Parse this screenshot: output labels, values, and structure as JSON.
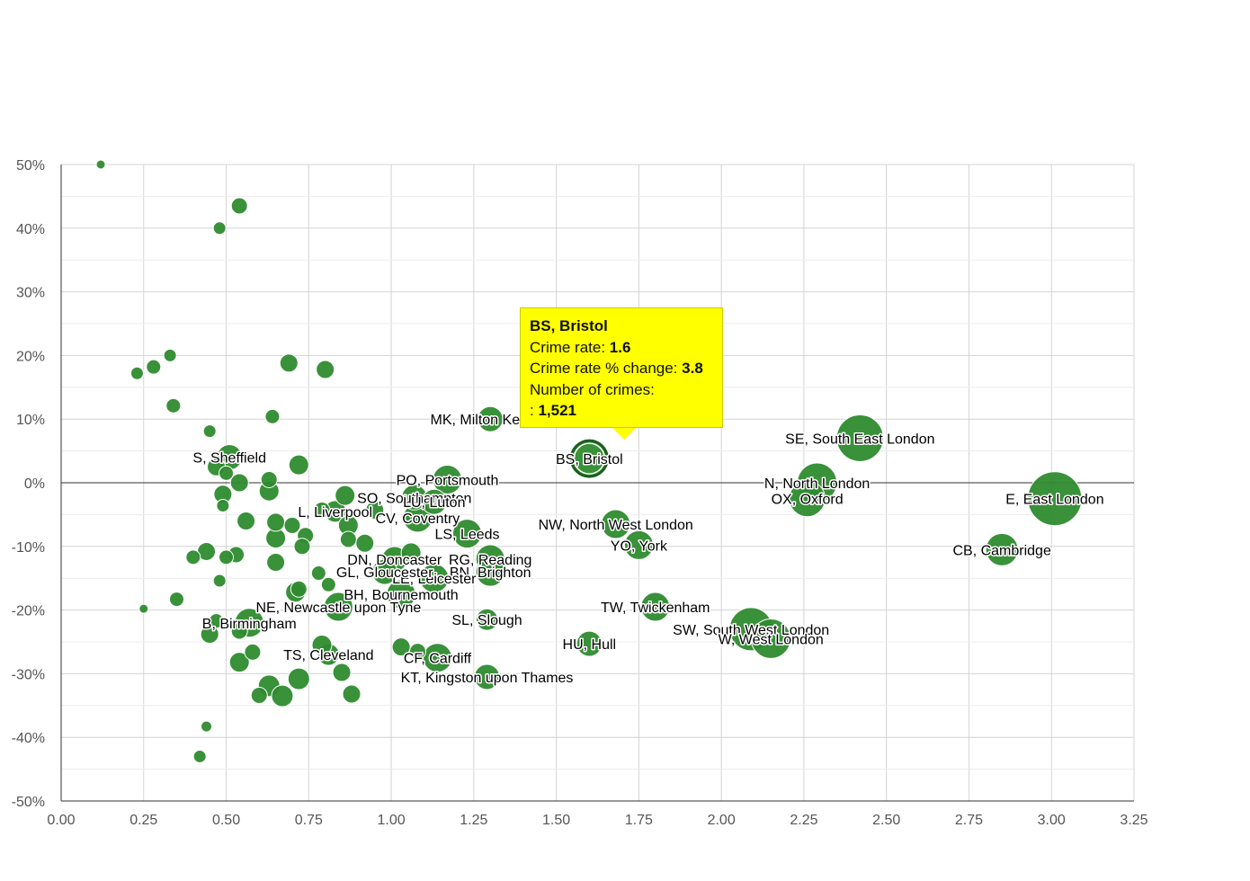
{
  "chart_data": {
    "type": "scatter",
    "title": "",
    "xlabel": "",
    "ylabel": "",
    "xlim": [
      0,
      3.25
    ],
    "ylim": [
      -50,
      50
    ],
    "x_ticks": [
      "0.00",
      "0.25",
      "0.50",
      "0.75",
      "1.00",
      "1.25",
      "1.50",
      "1.75",
      "2.00",
      "2.25",
      "2.50",
      "2.75",
      "3.00",
      "3.25"
    ],
    "y_ticks": [
      "50%",
      "40%",
      "30%",
      "20%",
      "10%",
      "0%",
      "-10%",
      "-20%",
      "-30%",
      "-40%",
      "-50%"
    ],
    "grid": true,
    "bubble_color": "#2e8b2e",
    "points": [
      {
        "name": "E, East London",
        "x": 3.01,
        "y": -2.5,
        "r": 30
      },
      {
        "name": "SE, South East London",
        "x": 2.42,
        "y": 7.0,
        "r": 26
      },
      {
        "name": "N, North London",
        "x": 2.29,
        "y": 0.0,
        "r": 22
      },
      {
        "name": "OX, Oxford",
        "x": 2.26,
        "y": -2.5,
        "r": 20
      },
      {
        "name": "CB, Cambridge",
        "x": 2.85,
        "y": -10.5,
        "r": 18
      },
      {
        "name": "SW, South West London",
        "x": 2.09,
        "y": -23.0,
        "r": 24
      },
      {
        "name": "W, West London",
        "x": 2.15,
        "y": -24.5,
        "r": 22
      },
      {
        "name": "BS, Bristol",
        "x": 1.6,
        "y": 3.8,
        "r": 20
      },
      {
        "name": "NW, North West London",
        "x": 1.68,
        "y": -6.5,
        "r": 16
      },
      {
        "name": "YO, York",
        "x": 1.75,
        "y": -9.8,
        "r": 16
      },
      {
        "name": "TW, Twickenham",
        "x": 1.8,
        "y": -19.5,
        "r": 16
      },
      {
        "name": "HU, Hull",
        "x": 1.6,
        "y": -25.3,
        "r": 14
      },
      {
        "name": "MK, Milton Keynes",
        "x": 1.3,
        "y": 10.0,
        "r": 14
      },
      {
        "name": "PO, Portsmouth",
        "x": 1.17,
        "y": 0.5,
        "r": 16
      },
      {
        "name": "SO, Southampton",
        "x": 1.07,
        "y": -2.3,
        "r": 14
      },
      {
        "name": "LU, Luton",
        "x": 1.13,
        "y": -3.0,
        "r": 14
      },
      {
        "name": "CV, Coventry",
        "x": 1.08,
        "y": -5.5,
        "r": 16
      },
      {
        "name": "LS, Leeds",
        "x": 1.23,
        "y": -8.0,
        "r": 16
      },
      {
        "name": "RG, Reading",
        "x": 1.3,
        "y": -12.0,
        "r": 16
      },
      {
        "name": "BN, Brighton",
        "x": 1.3,
        "y": -14.0,
        "r": 16
      },
      {
        "name": "LE, Leicester",
        "x": 1.13,
        "y": -15.0,
        "r": 16
      },
      {
        "name": "DN, Doncaster",
        "x": 1.01,
        "y": -12.0,
        "r": 14
      },
      {
        "name": "GL, Gloucester",
        "x": 0.98,
        "y": -14.0,
        "r": 14
      },
      {
        "name": "BH, Bournemouth",
        "x": 1.03,
        "y": -17.5,
        "r": 16
      },
      {
        "name": "SL, Slough",
        "x": 1.29,
        "y": -21.5,
        "r": 12
      },
      {
        "name": "CF, Cardiff",
        "x": 1.14,
        "y": -27.5,
        "r": 16
      },
      {
        "name": "KT, Kingston upon Thames",
        "x": 1.29,
        "y": -30.5,
        "r": 14
      },
      {
        "name": "TS, Cleveland",
        "x": 0.81,
        "y": -27.0,
        "r": 12
      },
      {
        "name": "NE, Newcastle upon Tyne",
        "x": 0.84,
        "y": -19.5,
        "r": 16
      },
      {
        "name": "L, Liverpool",
        "x": 0.83,
        "y": -4.5,
        "r": 12
      },
      {
        "name": "S, Sheffield",
        "x": 0.51,
        "y": 4.0,
        "r": 14
      },
      {
        "name": "B, Birmingham",
        "x": 0.57,
        "y": -22.0,
        "r": 16
      },
      {
        "name": "",
        "x": 0.12,
        "y": 50.0,
        "r": 5
      },
      {
        "name": "",
        "x": 0.54,
        "y": 43.5,
        "r": 9
      },
      {
        "name": "",
        "x": 0.48,
        "y": 40.0,
        "r": 7
      },
      {
        "name": "",
        "x": 0.23,
        "y": 17.2,
        "r": 7
      },
      {
        "name": "",
        "x": 0.28,
        "y": 18.2,
        "r": 8
      },
      {
        "name": "",
        "x": 0.33,
        "y": 20.0,
        "r": 7
      },
      {
        "name": "",
        "x": 0.69,
        "y": 18.8,
        "r": 10
      },
      {
        "name": "",
        "x": 0.8,
        "y": 17.8,
        "r": 10
      },
      {
        "name": "",
        "x": 0.34,
        "y": 12.1,
        "r": 8
      },
      {
        "name": "",
        "x": 0.64,
        "y": 10.4,
        "r": 8
      },
      {
        "name": "",
        "x": 0.45,
        "y": 8.1,
        "r": 7
      },
      {
        "name": "",
        "x": 0.47,
        "y": 2.5,
        "r": 10
      },
      {
        "name": "",
        "x": 0.5,
        "y": 1.5,
        "r": 8
      },
      {
        "name": "",
        "x": 0.72,
        "y": 2.8,
        "r": 11
      },
      {
        "name": "",
        "x": 0.54,
        "y": 0.0,
        "r": 10
      },
      {
        "name": "",
        "x": 0.63,
        "y": 0.5,
        "r": 9
      },
      {
        "name": "",
        "x": 0.63,
        "y": -1.3,
        "r": 11
      },
      {
        "name": "",
        "x": 0.49,
        "y": -1.8,
        "r": 10
      },
      {
        "name": "",
        "x": 0.49,
        "y": -3.6,
        "r": 7
      },
      {
        "name": "",
        "x": 0.56,
        "y": -6.0,
        "r": 10
      },
      {
        "name": "",
        "x": 0.65,
        "y": -6.2,
        "r": 10
      },
      {
        "name": "",
        "x": 0.7,
        "y": -6.7,
        "r": 9
      },
      {
        "name": "",
        "x": 0.86,
        "y": -2.0,
        "r": 11
      },
      {
        "name": "",
        "x": 0.87,
        "y": -6.7,
        "r": 11
      },
      {
        "name": "",
        "x": 0.79,
        "y": -4.3,
        "r": 9
      },
      {
        "name": "",
        "x": 0.95,
        "y": -4.3,
        "r": 10
      },
      {
        "name": "",
        "x": 0.74,
        "y": -8.3,
        "r": 9
      },
      {
        "name": "",
        "x": 0.65,
        "y": -8.7,
        "r": 11
      },
      {
        "name": "",
        "x": 0.73,
        "y": -10.0,
        "r": 9
      },
      {
        "name": "",
        "x": 0.87,
        "y": -8.9,
        "r": 9
      },
      {
        "name": "",
        "x": 0.92,
        "y": -9.5,
        "r": 10
      },
      {
        "name": "",
        "x": 1.06,
        "y": -11.0,
        "r": 11
      },
      {
        "name": "",
        "x": 0.44,
        "y": -10.8,
        "r": 10
      },
      {
        "name": "",
        "x": 0.4,
        "y": -11.7,
        "r": 8
      },
      {
        "name": "",
        "x": 0.5,
        "y": -11.7,
        "r": 8
      },
      {
        "name": "",
        "x": 0.53,
        "y": -11.3,
        "r": 9
      },
      {
        "name": "",
        "x": 0.65,
        "y": -12.5,
        "r": 10
      },
      {
        "name": "",
        "x": 0.78,
        "y": -14.2,
        "r": 8
      },
      {
        "name": "",
        "x": 0.48,
        "y": -15.4,
        "r": 7
      },
      {
        "name": "",
        "x": 0.81,
        "y": -16.0,
        "r": 8
      },
      {
        "name": "",
        "x": 0.72,
        "y": -16.7,
        "r": 9
      },
      {
        "name": "",
        "x": 0.71,
        "y": -17.2,
        "r": 11
      },
      {
        "name": "",
        "x": 0.35,
        "y": -18.3,
        "r": 8
      },
      {
        "name": "",
        "x": 0.25,
        "y": -19.8,
        "r": 5
      },
      {
        "name": "",
        "x": 0.47,
        "y": -21.7,
        "r": 8
      },
      {
        "name": "",
        "x": 0.54,
        "y": -23.3,
        "r": 9
      },
      {
        "name": "",
        "x": 0.45,
        "y": -23.8,
        "r": 10
      },
      {
        "name": "",
        "x": 0.58,
        "y": -26.6,
        "r": 9
      },
      {
        "name": "",
        "x": 0.54,
        "y": -28.2,
        "r": 11
      },
      {
        "name": "",
        "x": 0.79,
        "y": -25.5,
        "r": 11
      },
      {
        "name": "",
        "x": 1.03,
        "y": -25.8,
        "r": 10
      },
      {
        "name": "",
        "x": 1.08,
        "y": -26.5,
        "r": 9
      },
      {
        "name": "",
        "x": 0.85,
        "y": -29.8,
        "r": 10
      },
      {
        "name": "",
        "x": 0.72,
        "y": -30.8,
        "r": 12
      },
      {
        "name": "",
        "x": 0.63,
        "y": -31.9,
        "r": 12
      },
      {
        "name": "",
        "x": 0.6,
        "y": -33.4,
        "r": 9
      },
      {
        "name": "",
        "x": 0.67,
        "y": -33.5,
        "r": 12
      },
      {
        "name": "",
        "x": 0.88,
        "y": -33.2,
        "r": 10
      },
      {
        "name": "",
        "x": 0.44,
        "y": -38.3,
        "r": 6
      },
      {
        "name": "",
        "x": 0.42,
        "y": -43.0,
        "r": 7
      }
    ],
    "tooltip": {
      "title": "BS, Bristol",
      "rate_label": "Crime rate: ",
      "rate_value": "1.6",
      "change_label": "Crime rate % change: ",
      "change_value": "3.8",
      "count_label": "Number of crimes:",
      "count_prefix": ": ",
      "count_value": "1,521"
    }
  }
}
